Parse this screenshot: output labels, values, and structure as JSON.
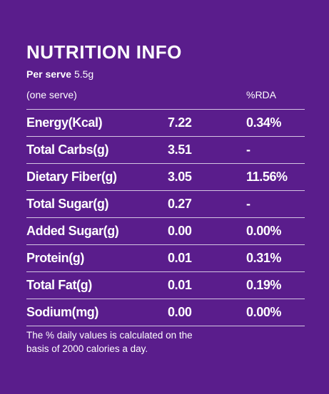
{
  "header": {
    "title": "NUTRITION INFO",
    "per_serve": {
      "label": "Per serve",
      "value": "5.5g"
    }
  },
  "table": {
    "columns": [
      "(one serve)",
      "",
      "%RDA"
    ],
    "rows": [
      [
        "Energy(Kcal)",
        "7.22",
        "0.34%"
      ],
      [
        "Total Carbs(g)",
        "3.51",
        "-"
      ],
      [
        "Dietary Fiber(g)",
        "3.05",
        "11.56%"
      ],
      [
        "Total Sugar(g)",
        "0.27",
        "-"
      ],
      [
        "Added Sugar(g)",
        "0.00",
        "0.00%"
      ],
      [
        "Protein(g)",
        "0.01",
        "0.31%"
      ],
      [
        "Total Fat(g)",
        "0.01",
        "0.19%"
      ],
      [
        "Sodium(mg)",
        "0.00",
        "0.00%"
      ]
    ]
  },
  "footer": {
    "lines": [
      "The % daily values is calculated on the",
      "basis of 2000 calories a day."
    ]
  }
}
